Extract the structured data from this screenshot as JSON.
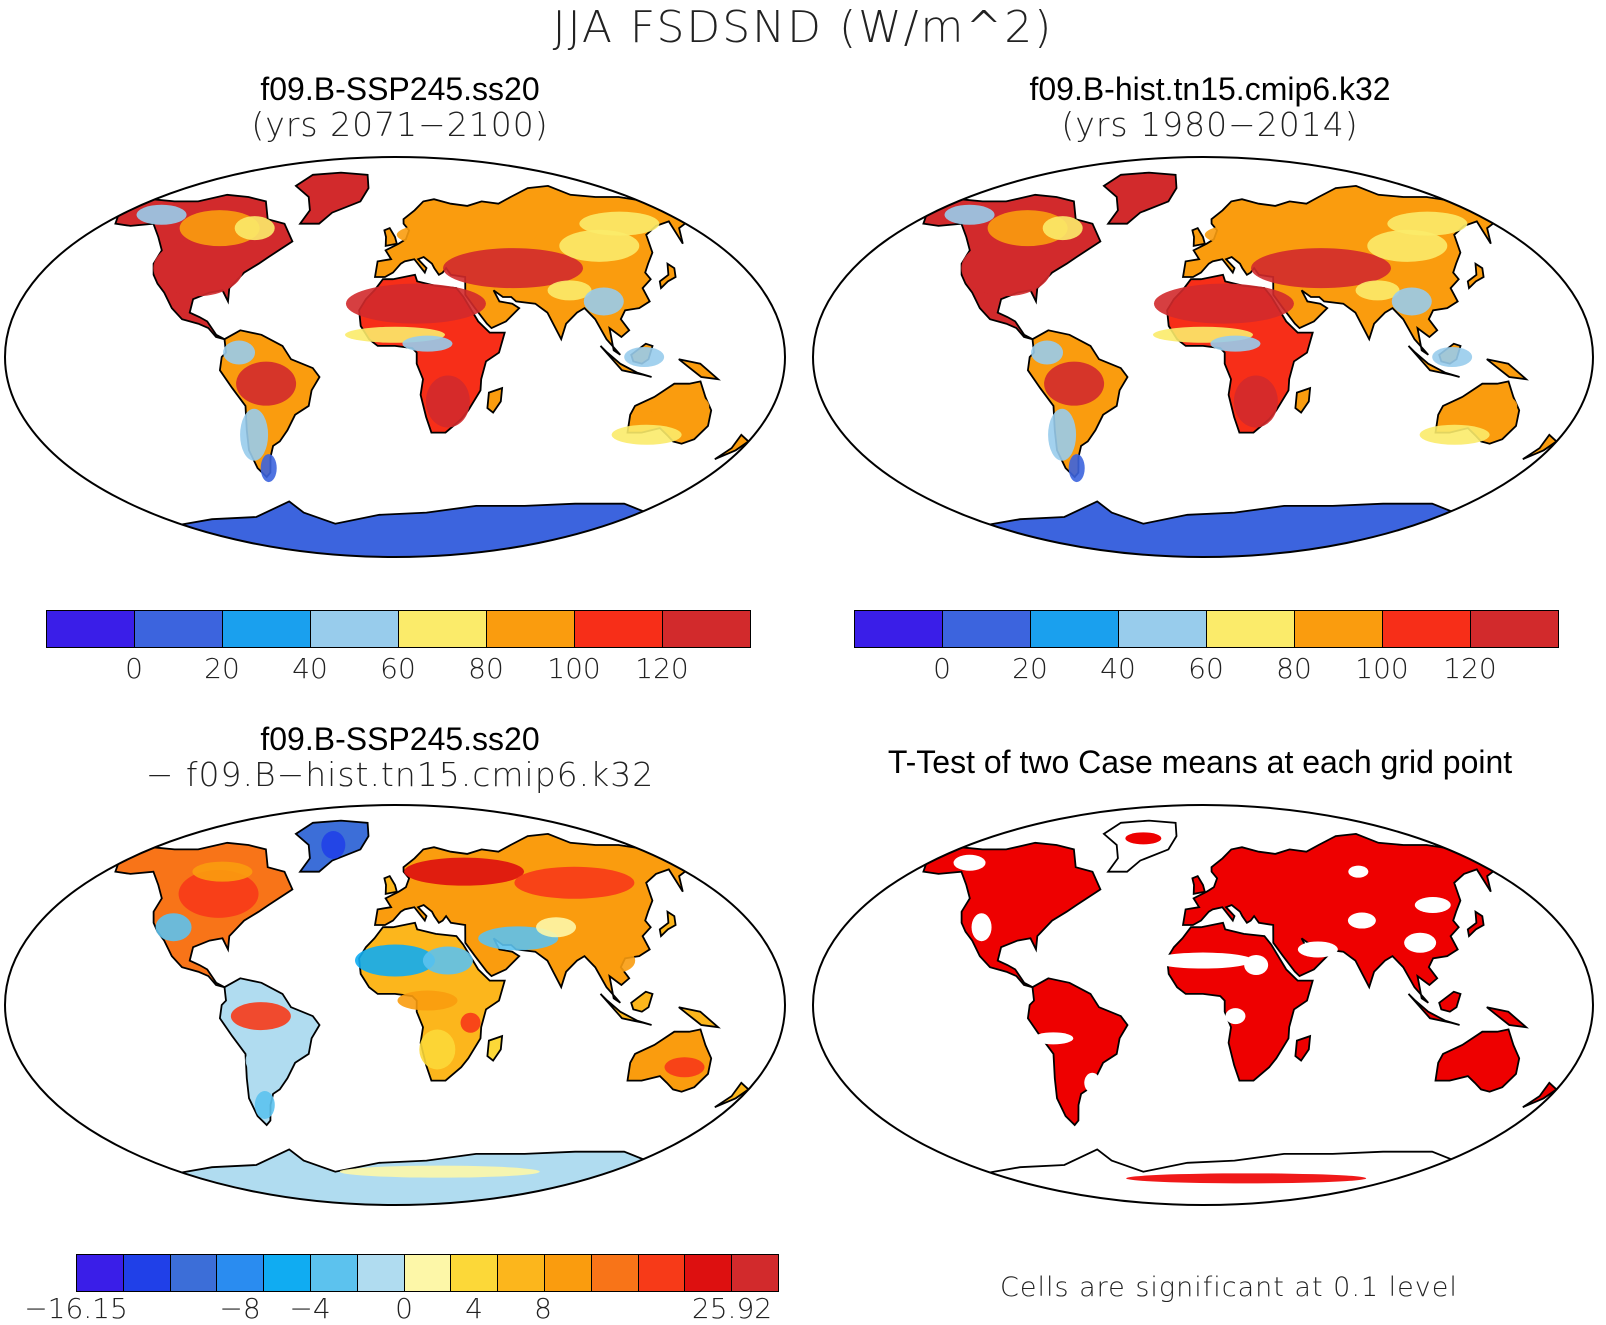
{
  "figure_title": "JJA FSDSND (W/m^2)",
  "panels": [
    {
      "id": "case1",
      "title_line1": "f09.B-SSP245.ss20",
      "title_line2": "(yrs 2071−2100)"
    },
    {
      "id": "case2",
      "title_line1": "f09.B-hist.tn15.cmip6.k32",
      "title_line2": "(yrs 1980−2014)"
    },
    {
      "id": "diff",
      "title_line1": "f09.B-SSP245.ss20",
      "title_line2": "− f09.B−hist.tn15.cmip6.k32"
    },
    {
      "id": "ttest",
      "title_line1": "T-Test of two Case means at each grid point"
    }
  ],
  "colorbars": {
    "absolute": {
      "colors": [
        "#3a1ee8",
        "#3c64de",
        "#1aa0ee",
        "#98ccec",
        "#fbeb6a",
        "#fa9c0e",
        "#f72e18",
        "#d22a2c"
      ],
      "labels": [
        "0",
        "20",
        "40",
        "60",
        "80",
        "100",
        "120"
      ]
    },
    "difference": {
      "colors": [
        "#3a1ee8",
        "#2040e8",
        "#3c6ed8",
        "#2a8cf0",
        "#10acf2",
        "#5cc2ee",
        "#b0dcf0",
        "#fdf7a8",
        "#fcd838",
        "#fcb61c",
        "#fa9c0e",
        "#f87418",
        "#f73a18",
        "#dd1010",
        "#d22a2c"
      ],
      "labels": [
        "−16.15",
        "−8",
        "−4",
        "0",
        "4",
        "8",
        "25.92"
      ]
    }
  },
  "significance_note": "Cells are significant at 0.1 level",
  "significance_color": "#ee0000"
}
